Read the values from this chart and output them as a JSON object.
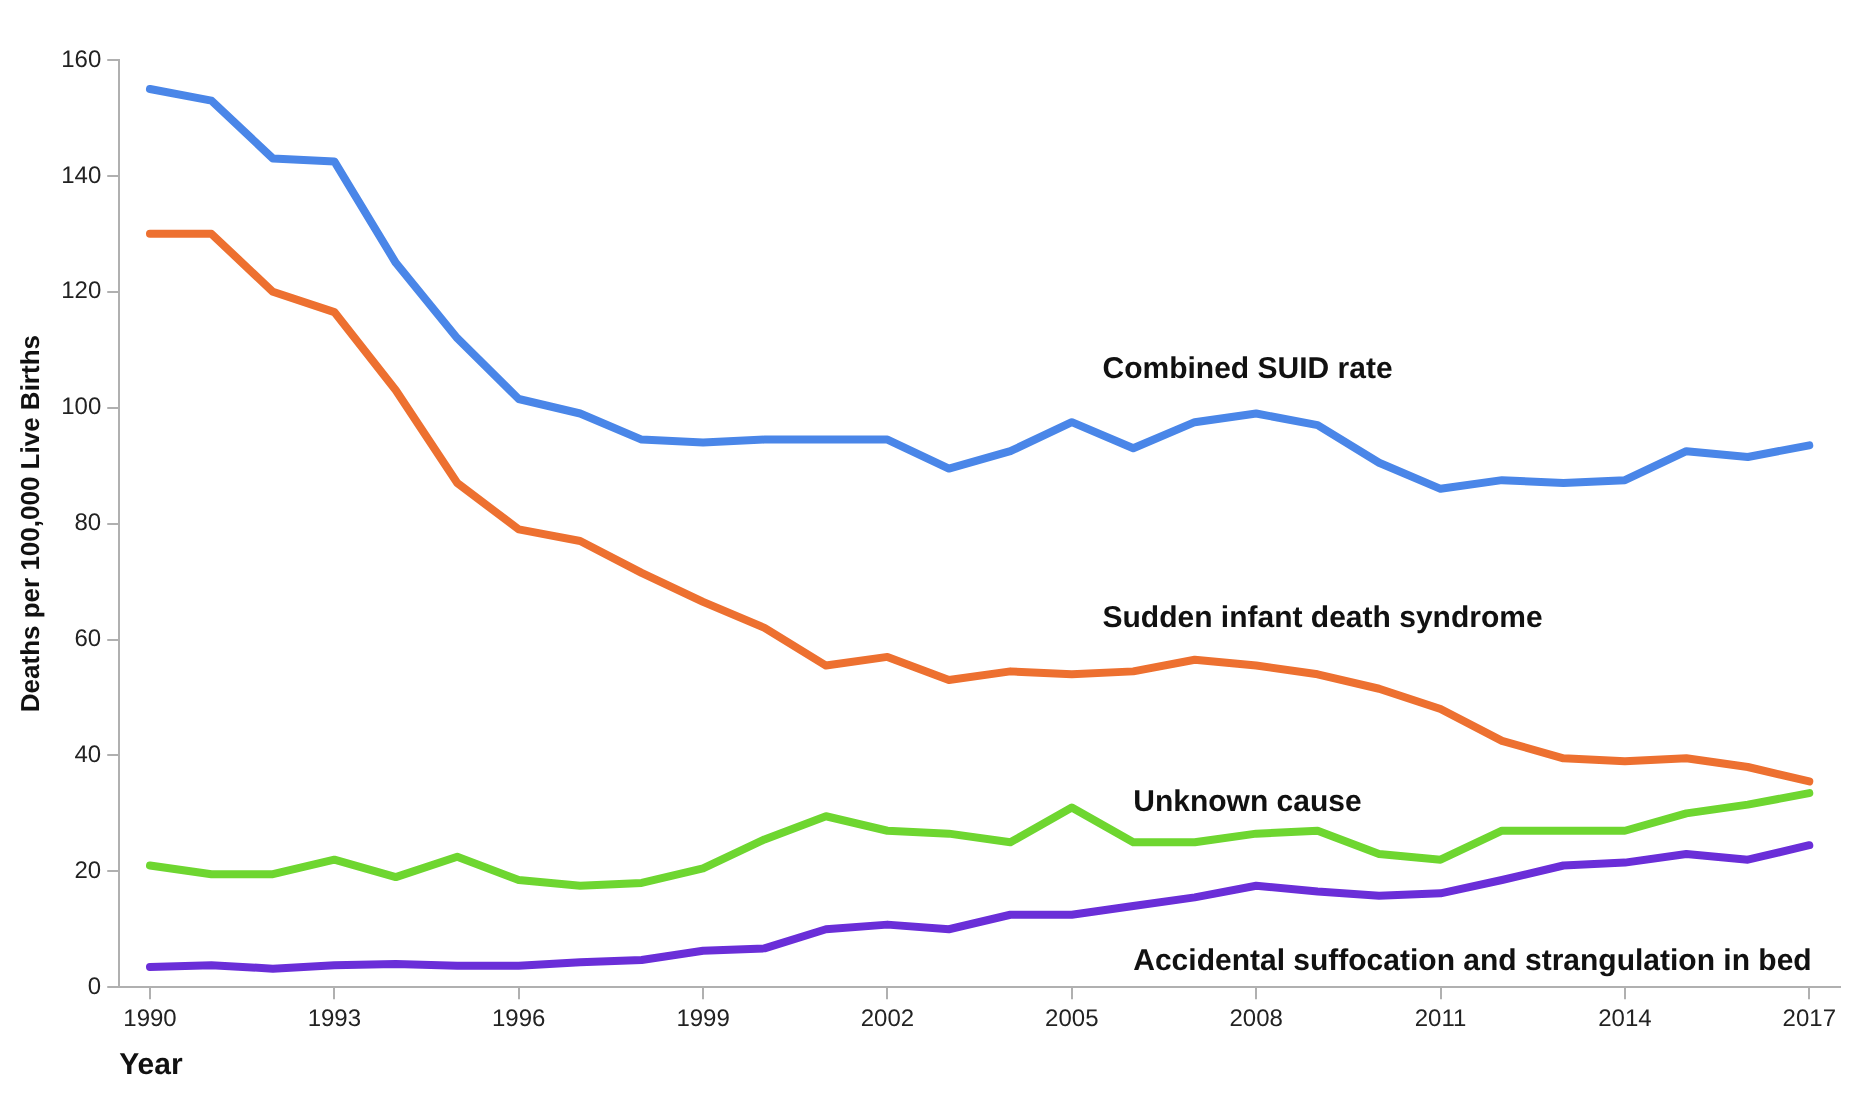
{
  "chart_data": {
    "type": "line",
    "xlabel": "Year",
    "ylabel": "Deaths per 100,000 Live Births",
    "x": [
      1990,
      1991,
      1992,
      1993,
      1994,
      1995,
      1996,
      1997,
      1998,
      1999,
      2000,
      2001,
      2002,
      2003,
      2004,
      2005,
      2006,
      2007,
      2008,
      2009,
      2010,
      2011,
      2012,
      2013,
      2014,
      2015,
      2016,
      2017
    ],
    "xlim": [
      1989.5,
      2017.5
    ],
    "xticks": [
      1990,
      1993,
      1996,
      1999,
      2002,
      2005,
      2008,
      2011,
      2014,
      2017
    ],
    "ylim": [
      0,
      160
    ],
    "yticks": [
      0,
      20,
      40,
      60,
      80,
      100,
      120,
      140,
      160
    ],
    "grid": false,
    "legend": false,
    "marker": "none",
    "line_style": "solid",
    "series": [
      {
        "name": "Combined SUID rate",
        "color": "#4a86e8",
        "values": [
          155,
          153,
          143,
          142.5,
          125,
          112,
          101.5,
          99,
          94.5,
          94,
          94.5,
          94.5,
          94.5,
          89.5,
          92.5,
          97.5,
          93,
          97.5,
          99,
          97,
          90.5,
          86,
          87.5,
          87,
          87.5,
          92.5,
          91.5,
          93.5
        ]
      },
      {
        "name": "Sudden infant death syndrome",
        "color": "#ed7030",
        "values": [
          130,
          130,
          120,
          116.5,
          103,
          87,
          79,
          77,
          71.5,
          66.5,
          62,
          55.5,
          57,
          53,
          54.5,
          54,
          54.5,
          56.5,
          55.5,
          54,
          51.5,
          48,
          42.5,
          39.5,
          39,
          39.5,
          38,
          35.5
        ]
      },
      {
        "name": "Unknown cause",
        "color": "#6ed630",
        "values": [
          21,
          19.5,
          19.5,
          22,
          19,
          22.5,
          18.5,
          17.5,
          18,
          20.5,
          25.5,
          29.5,
          27,
          26.5,
          25,
          31,
          25,
          25,
          26.5,
          27,
          23,
          22,
          27,
          27,
          27,
          30,
          31.5,
          33.5
        ]
      },
      {
        "name": "Accidental suffocation and strangulation in bed",
        "color": "#6a2ed8",
        "values": [
          3.5,
          3.8,
          3.2,
          3.8,
          4,
          3.7,
          3.7,
          4.3,
          4.7,
          6.3,
          6.7,
          10,
          10.8,
          10,
          12.5,
          12.5,
          14,
          15.5,
          17.5,
          16.5,
          15.8,
          16.2,
          18.5,
          21,
          21.5,
          23,
          22,
          24.5
        ]
      }
    ]
  }
}
